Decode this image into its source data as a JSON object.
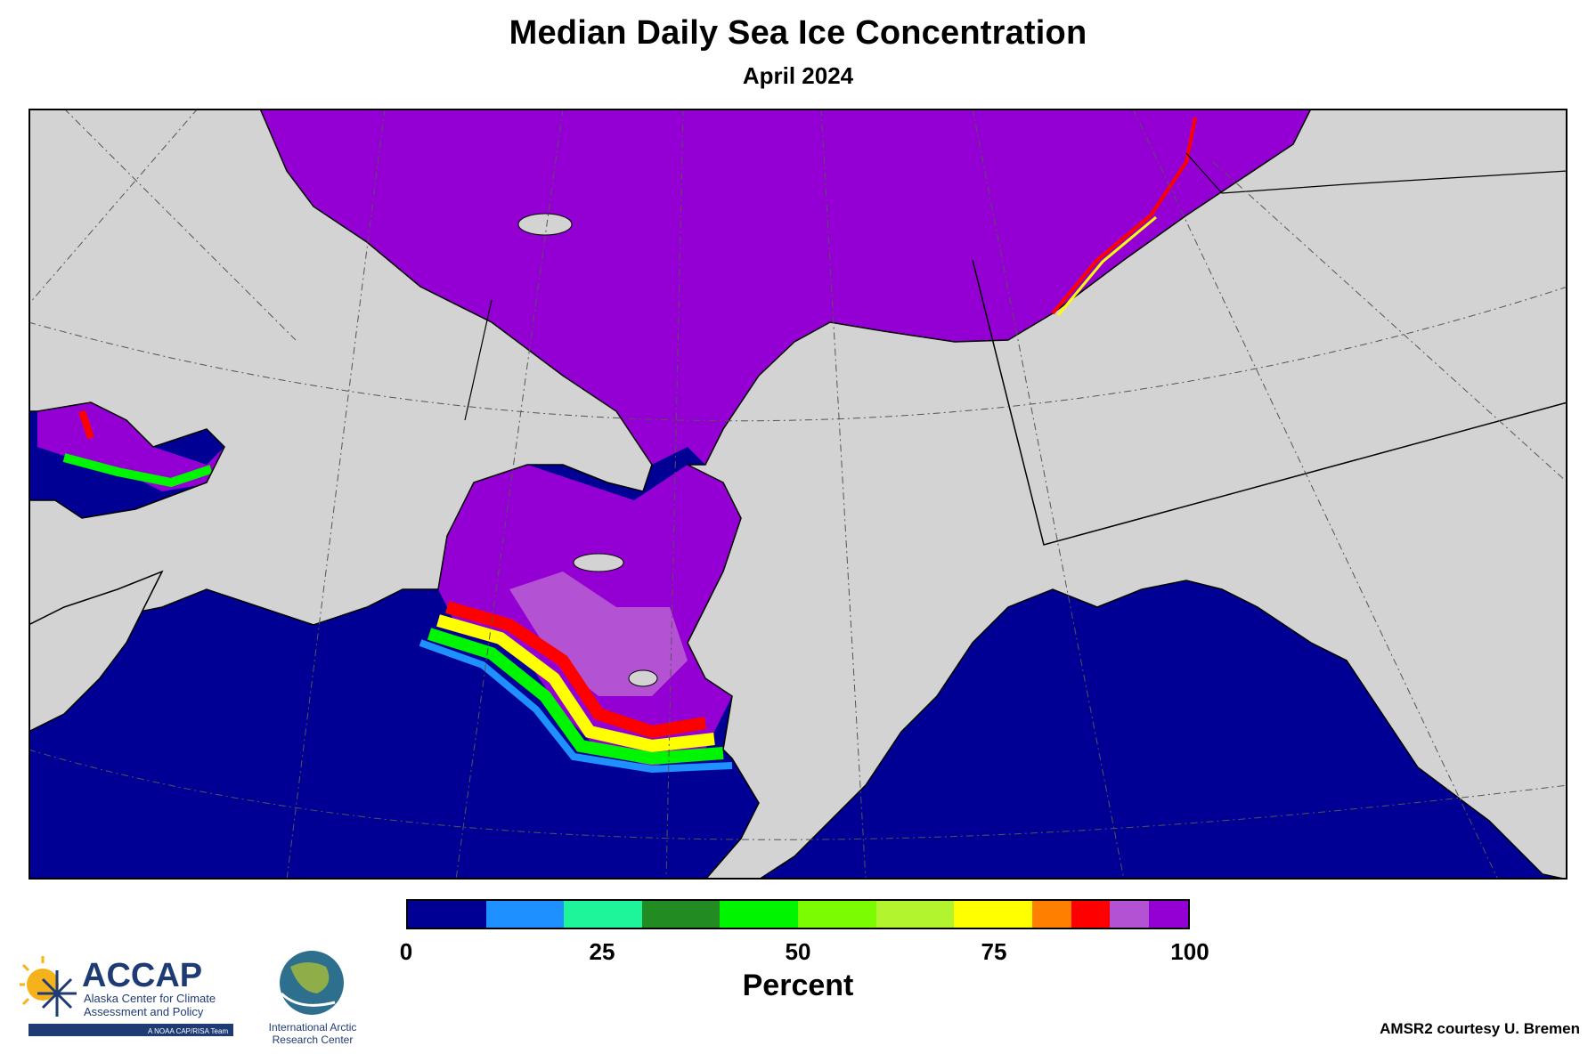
{
  "title": "Median Daily Sea Ice Concentration",
  "subtitle": "April 2024",
  "colorbar": {
    "label": "Percent",
    "ticks": [
      "0",
      "25",
      "50",
      "75",
      "100"
    ],
    "tick_values": [
      0,
      25,
      50,
      75,
      100
    ],
    "range": [
      0,
      100
    ],
    "bins": [
      {
        "from": 0,
        "to": 10,
        "color": "#000094"
      },
      {
        "from": 10,
        "to": 20,
        "color": "#1e90ff"
      },
      {
        "from": 20,
        "to": 30,
        "color": "#1ef59b"
      },
      {
        "from": 30,
        "to": 40,
        "color": "#228b22"
      },
      {
        "from": 40,
        "to": 50,
        "color": "#00f500"
      },
      {
        "from": 50,
        "to": 60,
        "color": "#7cfc00"
      },
      {
        "from": 60,
        "to": 70,
        "color": "#b2f52e"
      },
      {
        "from": 70,
        "to": 80,
        "color": "#ffff00"
      },
      {
        "from": 80,
        "to": 85,
        "color": "#ff7f00"
      },
      {
        "from": 85,
        "to": 90,
        "color": "#ff0000"
      },
      {
        "from": 90,
        "to": 95,
        "color": "#b452d4"
      },
      {
        "from": 95,
        "to": 100,
        "color": "#9400d3"
      }
    ]
  },
  "map_colors": {
    "land": "#d3d3d3",
    "open_water": "#000094",
    "ice_full": "#9400d3",
    "ice_high": "#b452d4",
    "ice_red": "#ff0000",
    "ice_orange": "#ff7f00",
    "ice_yellow": "#ffff00",
    "ice_green": "#00f500",
    "ice_blue": "#1e90ff",
    "graticule": "#555555",
    "border": "#000000"
  },
  "logos": {
    "accap": {
      "name": "ACCAP",
      "line1": "Alaska Center for Climate",
      "line2": "Assessment and Policy",
      "tag": "A NOAA CAP/RISA Team"
    },
    "iarc": {
      "line1": "International Arctic",
      "line2": "Research Center"
    }
  },
  "credit": "AMSR2 courtesy U. Bremen"
}
